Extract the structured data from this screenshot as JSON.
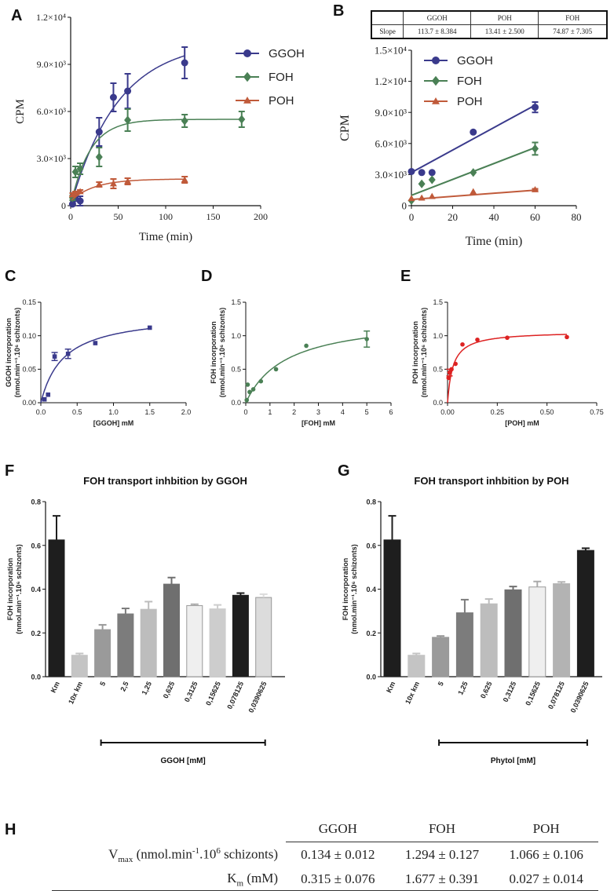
{
  "panel_letters": [
    "A",
    "B",
    "C",
    "D",
    "E",
    "F",
    "G",
    "H"
  ],
  "chart_data": [
    {
      "panel": "A",
      "type": "scatter",
      "xlabel": "Time (min)",
      "ylabel": "CPM",
      "xlim": [
        0,
        200
      ],
      "ylim": [
        0,
        12000
      ],
      "xticks": [
        "0",
        "50",
        "100",
        "150",
        "200"
      ],
      "yticks": [
        "0",
        "3.0×10³",
        "6.0×10³",
        "9.0×10³",
        "1.2×10⁴"
      ],
      "series": [
        {
          "name": "GGOH",
          "color": "#3a3a8c",
          "marker": "circle",
          "x": [
            2,
            5,
            10,
            30,
            45,
            60,
            120
          ],
          "y": [
            100,
            450,
            300,
            4700,
            6900,
            7300,
            9100
          ],
          "err": [
            50,
            150,
            300,
            900,
            900,
            1100,
            1000
          ]
        },
        {
          "name": "FOH",
          "color": "#4a8055",
          "marker": "diamond",
          "x": [
            2,
            5,
            10,
            30,
            60,
            120,
            180
          ],
          "y": [
            500,
            2150,
            2350,
            3100,
            5450,
            5400,
            5500
          ],
          "err": [
            150,
            350,
            350,
            600,
            700,
            400,
            500
          ]
        },
        {
          "name": "POH",
          "color": "#c05a3a",
          "marker": "triangle",
          "x": [
            2,
            5,
            10,
            30,
            45,
            60,
            120
          ],
          "y": [
            700,
            800,
            900,
            1350,
            1400,
            1550,
            1650
          ],
          "err": [
            100,
            100,
            100,
            150,
            300,
            200,
            200
          ]
        }
      ]
    },
    {
      "panel": "B",
      "type": "scatter",
      "xlabel": "Time (min)",
      "ylabel": "CPM",
      "xlim": [
        0,
        80
      ],
      "ylim": [
        0,
        15000
      ],
      "xticks": [
        "0",
        "20",
        "40",
        "60",
        "80"
      ],
      "yticks": [
        "0",
        "3.0×10³",
        "6.0×10³",
        "9.0×10³",
        "1.2×10⁴",
        "1.5×10⁴"
      ],
      "series": [
        {
          "name": "GGOH",
          "color": "#3a3a8c",
          "marker": "circle",
          "x": [
            0,
            5,
            10,
            30,
            60
          ],
          "y": [
            3300,
            3200,
            3200,
            7100,
            9500
          ],
          "err": [
            0,
            0,
            0,
            0,
            500
          ],
          "fit": [
            [
              0,
              3200
            ],
            [
              60,
              9700
            ]
          ]
        },
        {
          "name": "FOH",
          "color": "#4a8055",
          "marker": "diamond",
          "x": [
            0,
            5,
            10,
            30,
            60
          ],
          "y": [
            500,
            2100,
            2500,
            3200,
            5500
          ],
          "err": [
            0,
            0,
            0,
            0,
            600
          ],
          "fit": [
            [
              0,
              1000
            ],
            [
              60,
              5600
            ]
          ]
        },
        {
          "name": "POH",
          "color": "#c05a3a",
          "marker": "triangle",
          "x": [
            0,
            5,
            10,
            30,
            60
          ],
          "y": [
            700,
            750,
            900,
            1350,
            1550
          ],
          "err": [
            0,
            0,
            0,
            0,
            80
          ],
          "fit": [
            [
              0,
              600
            ],
            [
              60,
              1500
            ]
          ]
        }
      ],
      "slope_table": {
        "headers": [
          "",
          "GGOH",
          "POH",
          "FOH"
        ],
        "row": [
          "Slope",
          "113.7 ± 8.384",
          "13.41 ± 2.500",
          "74.87 ± 7.305"
        ]
      }
    },
    {
      "panel": "C",
      "type": "scatter",
      "xlabel": "[GGOH] mM",
      "ylabel": [
        "GGOH incorporation",
        "(nmol.min⁻¹.10⁶ schizonts)"
      ],
      "xlim": [
        0,
        2.0
      ],
      "ylim": [
        0,
        0.15
      ],
      "xticks": [
        "0.0",
        "0.5",
        "1.0",
        "1.5",
        "2.0"
      ],
      "yticks": [
        "0.00",
        "0.05",
        "0.10",
        "0.15"
      ],
      "color": "#3a3a8c",
      "marker": "square",
      "x": [
        0.05,
        0.1,
        0.19,
        0.375,
        0.75,
        1.5
      ],
      "y": [
        0.005,
        0.012,
        0.069,
        0.073,
        0.089,
        0.112
      ],
      "err": [
        0,
        0,
        0.006,
        0.007,
        0,
        0
      ],
      "fit": {
        "vmax": 0.134,
        "km": 0.315
      }
    },
    {
      "panel": "D",
      "type": "scatter",
      "xlabel": "[FOH] mM",
      "ylabel": [
        "FOH incorporation",
        "(nmol.min⁻¹.10⁶ schizonts)"
      ],
      "xlim": [
        0,
        6
      ],
      "ylim": [
        0,
        1.5
      ],
      "xticks": [
        "0",
        "1",
        "2",
        "3",
        "4",
        "5",
        "6"
      ],
      "yticks": [
        "0.0",
        "0.5",
        "1.0",
        "1.5"
      ],
      "color": "#4a8055",
      "marker": "circle",
      "x": [
        0.04,
        0.08,
        0.16,
        0.31,
        0.625,
        1.25,
        2.5,
        5
      ],
      "y": [
        0.04,
        0.27,
        0.16,
        0.2,
        0.32,
        0.5,
        0.85,
        0.95
      ],
      "err": [
        0,
        0,
        0,
        0,
        0,
        0,
        0,
        0.12
      ],
      "fit": {
        "vmax": 1.294,
        "km": 1.677
      }
    },
    {
      "panel": "E",
      "type": "scatter",
      "xlabel": "[POH] mM",
      "ylabel": [
        "POH incorporation",
        "(nmol.min⁻¹.10⁶ schizonts)"
      ],
      "xlim": [
        0,
        0.75
      ],
      "ylim": [
        0,
        1.5
      ],
      "xticks": [
        "0.00",
        "0.25",
        "0.50",
        "0.75"
      ],
      "yticks": [
        "0.0",
        "0.5",
        "1.0",
        "1.5"
      ],
      "color": "#dd2222",
      "marker": "circle",
      "x": [
        0.005,
        0.01,
        0.02,
        0.04,
        0.075,
        0.15,
        0.3,
        0.6
      ],
      "y": [
        0.37,
        0.45,
        0.5,
        0.58,
        0.87,
        0.94,
        0.97,
        0.98
      ],
      "err": [
        0,
        0.05,
        0,
        0,
        0,
        0,
        0,
        0
      ],
      "fit": {
        "vmax": 1.066,
        "km": 0.027
      }
    },
    {
      "panel": "F",
      "type": "bar",
      "title": "FOH transport inhbition by GGOH",
      "ylabel": [
        "FOH incorporation",
        "(nmol.min⁻¹.10⁶ schizonts)"
      ],
      "ylim": [
        0,
        0.8
      ],
      "yticks": [
        "0.0",
        "0.2",
        "0.4",
        "0.6",
        "0.8"
      ],
      "categories": [
        "Km",
        "10x km",
        "5",
        "2,5",
        "1,25",
        "0,625",
        "0,3125",
        "0,15625",
        "0,078125",
        "0,0390625"
      ],
      "values": [
        0.625,
        0.098,
        0.215,
        0.287,
        0.308,
        0.423,
        0.325,
        0.31,
        0.372,
        0.362
      ],
      "errors": [
        0.11,
        0.008,
        0.022,
        0.025,
        0.035,
        0.03,
        0.006,
        0.018,
        0.01,
        0.015
      ],
      "colors": [
        "#1e1e1e",
        "#c4c4c4",
        "#9a9a9a",
        "#7c7c7c",
        "#bdbdbd",
        "#6f6f6f",
        "#efefef",
        "#cdcdcd",
        "#1e1e1e",
        "#dcdcdc"
      ],
      "bracket_label": "GGOH [mM]"
    },
    {
      "panel": "G",
      "type": "bar",
      "title": "FOH transport inhbition by POH",
      "ylabel": [
        "FOH incorporation",
        "(nmol.min⁻¹.10⁶ schizonts)"
      ],
      "ylim": [
        0,
        0.8
      ],
      "yticks": [
        "0.0",
        "0.2",
        "0.4",
        "0.6",
        "0.8"
      ],
      "categories": [
        "Km",
        "10x km",
        "5",
        "1,25",
        "0,625",
        "0,3125",
        "0,15625",
        "0,078125",
        "0,0390625"
      ],
      "values": [
        0.625,
        0.098,
        0.18,
        0.292,
        0.333,
        0.397,
        0.41,
        0.425,
        0.577
      ],
      "errors": [
        0.11,
        0.008,
        0.006,
        0.06,
        0.022,
        0.015,
        0.025,
        0.008,
        0.01
      ],
      "colors": [
        "#1e1e1e",
        "#c4c4c4",
        "#9a9a9a",
        "#7c7c7c",
        "#bdbdbd",
        "#6f6f6f",
        "#efefef",
        "#b3b3b3",
        "#1e1e1e"
      ],
      "bracket_label": "Phytol [mM]"
    }
  ],
  "table_h": {
    "columns": [
      "GGOH",
      "FOH",
      "POH"
    ],
    "rows": [
      {
        "label_main": "V",
        "label_sub": "max",
        "label_rest_a": " (nmol.min",
        "label_sup1": "-1",
        "label_rest_b": ".10",
        "label_sup2": "6",
        "label_rest_c": " schizonts)",
        "cells": [
          "0.134 ± 0.012",
          "1.294 ± 0.127",
          "1.066 ± 0.106"
        ]
      },
      {
        "label_main": "K",
        "label_sub": "m",
        "label_rest_a": " (mM)",
        "cells": [
          "0.315 ± 0.076",
          "1.677 ± 0.391",
          "0.027 ± 0.014"
        ]
      }
    ]
  }
}
